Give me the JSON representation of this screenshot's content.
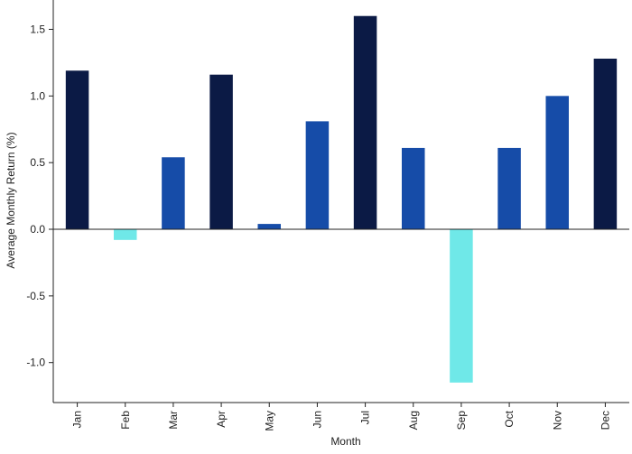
{
  "chart_data": {
    "type": "bar",
    "title": "",
    "xlabel": "Month",
    "ylabel": "Average Monthly Return (%)",
    "categories": [
      "Jan",
      "Feb",
      "Mar",
      "Apr",
      "May",
      "Jun",
      "Jul",
      "Aug",
      "Sep",
      "Oct",
      "Nov",
      "Dec"
    ],
    "values": [
      1.19,
      -0.08,
      0.54,
      1.16,
      0.04,
      0.81,
      1.6,
      0.61,
      -1.15,
      0.61,
      1.0,
      1.28
    ],
    "bar_colors": [
      "#0b1a45",
      "#6fe8e8",
      "#164ca8",
      "#0b1a45",
      "#164ca8",
      "#164ca8",
      "#0b1a45",
      "#164ca8",
      "#6fe8e8",
      "#164ca8",
      "#164ca8",
      "#0b1a45"
    ],
    "ylim": [
      -1.3,
      1.72
    ],
    "yticks": [
      -1.0,
      -0.5,
      0.0,
      0.5,
      1.0,
      1.5
    ],
    "ytick_labels": [
      "-1.0",
      "-0.5",
      "0.0",
      "0.5",
      "1.0",
      "1.5"
    ],
    "grid": false,
    "zero_line": true
  }
}
